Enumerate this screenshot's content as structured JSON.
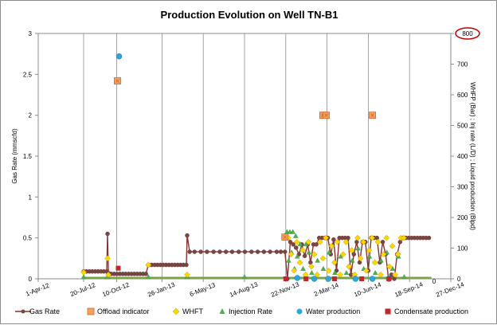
{
  "chart_data": {
    "type": "line",
    "title": "Production Evolution on Well TN-B1",
    "ylabel_left": "Gas Rate (mmscfd)",
    "ylabel_right": "WHFP (Bar) ; Inj rate (L/D) ; Liquid production (Blpd)",
    "ylim_left": [
      0,
      3
    ],
    "ylim_right": [
      0,
      800
    ],
    "y_ticks_left": [
      "0",
      "0.5",
      "1",
      "1.5",
      "2",
      "2.5",
      "3"
    ],
    "y_ticks_right": [
      "0",
      "100",
      "200",
      "300",
      "400",
      "500",
      "600",
      "700",
      "800"
    ],
    "x_range": [
      "2012-04-01",
      "2014-12-27"
    ],
    "x_ticks": [
      {
        "date": "2012-04-01",
        "label": "1-Apr-12"
      },
      {
        "date": "2012-07-20",
        "label": "20-Jul-12"
      },
      {
        "date": "2012-10-08",
        "label": "10-Oct-12"
      },
      {
        "date": "2013-01-26",
        "label": "26-Jan-13"
      },
      {
        "date": "2013-05-06",
        "label": "6-May-13"
      },
      {
        "date": "2013-08-14",
        "label": "14-Aug-13"
      },
      {
        "date": "2013-11-22",
        "label": "22-Nov-13"
      },
      {
        "date": "2014-03-02",
        "label": "2-Mar-14"
      },
      {
        "date": "2014-06-10",
        "label": "10-Jun-14"
      },
      {
        "date": "2014-09-18",
        "label": "18-Sep-14"
      },
      {
        "date": "2014-12-27",
        "label": "27-Dec-14"
      }
    ],
    "right_axis_annotation": {
      "label": "800",
      "color": "#c00000"
    },
    "end_label": "0",
    "series": [
      {
        "name": "Gas Rate",
        "axis": "left",
        "color": "#8b2f2f",
        "marker_color": "#6e4b46",
        "points": [
          [
            "2012-07-20",
            0.09
          ],
          [
            "2012-07-27",
            0.09
          ],
          [
            "2012-08-03",
            0.09
          ],
          [
            "2012-08-10",
            0.09
          ],
          [
            "2012-08-17",
            0.09
          ],
          [
            "2012-08-24",
            0.09
          ],
          [
            "2012-08-31",
            0.09
          ],
          [
            "2012-09-07",
            0.09
          ],
          [
            "2012-09-14",
            0.09
          ],
          [
            "2012-09-16",
            0.55
          ],
          [
            "2012-09-18",
            0.07
          ],
          [
            "2012-09-25",
            0.06
          ],
          [
            "2012-10-02",
            0.06
          ],
          [
            "2012-10-09",
            0.06
          ],
          [
            "2012-10-16",
            0.06
          ],
          [
            "2012-10-23",
            0.06
          ],
          [
            "2012-10-30",
            0.06
          ],
          [
            "2012-11-06",
            0.06
          ],
          [
            "2012-11-13",
            0.06
          ],
          [
            "2012-11-20",
            0.06
          ],
          [
            "2012-11-27",
            0.06
          ],
          [
            "2012-12-04",
            0.06
          ],
          [
            "2012-12-11",
            0.06
          ],
          [
            "2012-12-18",
            0.06
          ],
          [
            "2012-12-24",
            0.17
          ],
          [
            "2013-01-01",
            0.17
          ],
          [
            "2013-01-08",
            0.17
          ],
          [
            "2013-01-15",
            0.17
          ],
          [
            "2013-01-22",
            0.17
          ],
          [
            "2013-01-29",
            0.17
          ],
          [
            "2013-02-05",
            0.17
          ],
          [
            "2013-02-12",
            0.17
          ],
          [
            "2013-02-19",
            0.17
          ],
          [
            "2013-02-26",
            0.17
          ],
          [
            "2013-03-05",
            0.17
          ],
          [
            "2013-03-12",
            0.17
          ],
          [
            "2013-03-19",
            0.17
          ],
          [
            "2013-03-26",
            0.17
          ],
          [
            "2013-03-28",
            0.53
          ],
          [
            "2013-04-03",
            0.33
          ],
          [
            "2013-04-15",
            0.33
          ],
          [
            "2013-04-30",
            0.33
          ],
          [
            "2013-05-15",
            0.33
          ],
          [
            "2013-05-31",
            0.33
          ],
          [
            "2013-06-15",
            0.33
          ],
          [
            "2013-06-30",
            0.33
          ],
          [
            "2013-07-15",
            0.33
          ],
          [
            "2013-07-31",
            0.33
          ],
          [
            "2013-08-15",
            0.33
          ],
          [
            "2013-08-31",
            0.33
          ],
          [
            "2013-09-15",
            0.33
          ],
          [
            "2013-09-30",
            0.33
          ],
          [
            "2013-10-15",
            0.33
          ],
          [
            "2013-10-31",
            0.33
          ],
          [
            "2013-11-10",
            0.33
          ],
          [
            "2013-11-20",
            0.33
          ],
          [
            "2013-11-26",
            0.0
          ],
          [
            "2013-12-03",
            0.45
          ],
          [
            "2013-12-10",
            0.42
          ],
          [
            "2013-12-17",
            0.38
          ],
          [
            "2013-12-24",
            0.3
          ],
          [
            "2013-12-31",
            0.42
          ],
          [
            "2014-01-07",
            0.28
          ],
          [
            "2014-01-14",
            0.42
          ],
          [
            "2014-01-21",
            0.2
          ],
          [
            "2014-01-28",
            0.42
          ],
          [
            "2014-02-04",
            0.42
          ],
          [
            "2014-02-11",
            0.5
          ],
          [
            "2014-02-18",
            0.5
          ],
          [
            "2014-02-25",
            0.5
          ],
          [
            "2014-03-04",
            0.5
          ],
          [
            "2014-03-11",
            0.3
          ],
          [
            "2014-03-18",
            0.48
          ],
          [
            "2014-03-25",
            0.1
          ],
          [
            "2014-04-01",
            0.5
          ],
          [
            "2014-04-08",
            0.5
          ],
          [
            "2014-04-15",
            0.5
          ],
          [
            "2014-04-22",
            0.5
          ],
          [
            "2014-04-29",
            0.05
          ],
          [
            "2014-05-06",
            0.3
          ],
          [
            "2014-05-13",
            0.45
          ],
          [
            "2014-05-20",
            0.2
          ],
          [
            "2014-05-27",
            0.45
          ],
          [
            "2014-06-03",
            0.45
          ],
          [
            "2014-06-10",
            0.1
          ],
          [
            "2014-06-17",
            0.5
          ],
          [
            "2014-06-24",
            0.5
          ],
          [
            "2014-07-01",
            0.5
          ],
          [
            "2014-07-08",
            0.2
          ],
          [
            "2014-07-15",
            0.45
          ],
          [
            "2014-07-22",
            0.3
          ],
          [
            "2014-07-29",
            0.0
          ],
          [
            "2014-08-05",
            0.05
          ],
          [
            "2014-08-12",
            0.0
          ],
          [
            "2014-08-19",
            0.3
          ],
          [
            "2014-08-26",
            0.45
          ],
          [
            "2014-09-02",
            0.5
          ],
          [
            "2014-09-09",
            0.5
          ],
          [
            "2014-09-16",
            0.5
          ],
          [
            "2014-09-23",
            0.5
          ],
          [
            "2014-09-30",
            0.5
          ],
          [
            "2014-10-07",
            0.5
          ],
          [
            "2014-10-14",
            0.5
          ],
          [
            "2014-10-21",
            0.5
          ],
          [
            "2014-10-28",
            0.5
          ],
          [
            "2014-11-04",
            0.5
          ]
        ]
      },
      {
        "name": "Offload indicator",
        "axis": "left",
        "color": "#f4a261",
        "edge_color": "#d6622a",
        "points": [
          [
            "2012-10-10",
            2.42
          ],
          [
            "2013-11-20",
            0.51
          ],
          [
            "2014-02-20",
            2.0
          ],
          [
            "2014-02-28",
            2.0
          ],
          [
            "2014-06-20",
            2.0
          ]
        ]
      },
      {
        "name": "WHFT",
        "axis": "left",
        "color": "#ffd700",
        "edge_color": "#b8a000",
        "points": [
          [
            "2012-07-20",
            0.08
          ],
          [
            "2012-09-16",
            0.25
          ],
          [
            "2012-09-18",
            0.05
          ],
          [
            "2012-12-24",
            0.17
          ],
          [
            "2013-03-28",
            0.05
          ],
          [
            "2013-11-28",
            0.5
          ],
          [
            "2013-12-05",
            0.3
          ],
          [
            "2013-12-12",
            0.1
          ],
          [
            "2013-12-19",
            0.45
          ],
          [
            "2013-12-26",
            0.2
          ],
          [
            "2014-01-02",
            0.35
          ],
          [
            "2014-01-09",
            0.05
          ],
          [
            "2014-01-16",
            0.45
          ],
          [
            "2014-01-23",
            0.15
          ],
          [
            "2014-01-30",
            0.3
          ],
          [
            "2014-02-06",
            0.05
          ],
          [
            "2014-02-13",
            0.45
          ],
          [
            "2014-02-20",
            0.25
          ],
          [
            "2014-02-27",
            0.5
          ],
          [
            "2014-03-06",
            0.1
          ],
          [
            "2014-03-13",
            0.4
          ],
          [
            "2014-03-20",
            0.2
          ],
          [
            "2014-03-27",
            0.45
          ],
          [
            "2014-04-03",
            0.05
          ],
          [
            "2014-04-10",
            0.3
          ],
          [
            "2014-04-17",
            0.45
          ],
          [
            "2014-04-24",
            0.15
          ],
          [
            "2014-05-01",
            0.35
          ],
          [
            "2014-05-08",
            0.05
          ],
          [
            "2014-05-15",
            0.5
          ],
          [
            "2014-05-22",
            0.25
          ],
          [
            "2014-05-29",
            0.45
          ],
          [
            "2014-06-05",
            0.1
          ],
          [
            "2014-06-12",
            0.35
          ],
          [
            "2014-06-19",
            0.5
          ],
          [
            "2014-06-26",
            0.2
          ],
          [
            "2014-07-03",
            0.45
          ],
          [
            "2014-07-10",
            0.05
          ],
          [
            "2014-07-17",
            0.3
          ],
          [
            "2014-07-24",
            0.5
          ],
          [
            "2014-07-31",
            0.15
          ],
          [
            "2014-08-07",
            0.4
          ],
          [
            "2014-08-14",
            0.05
          ],
          [
            "2014-08-21",
            0.3
          ],
          [
            "2014-08-28",
            0.5
          ],
          [
            "2014-09-04",
            0.5
          ]
        ]
      },
      {
        "name": "Injection Rate",
        "axis": "left",
        "color": "#4caf50",
        "points": [
          [
            "2012-07-20",
            0.0
          ],
          [
            "2012-09-16",
            0.0
          ],
          [
            "2012-12-24",
            0.0
          ],
          [
            "2013-03-28",
            0.0
          ],
          [
            "2013-08-14",
            0.0
          ],
          [
            "2013-11-25",
            0.55
          ],
          [
            "2013-11-29",
            0.2
          ],
          [
            "2013-12-02",
            0.55
          ],
          [
            "2013-12-06",
            0.3
          ],
          [
            "2013-12-09",
            0.55
          ],
          [
            "2013-12-13",
            0.1
          ],
          [
            "2013-12-16",
            0.5
          ],
          [
            "2013-12-20",
            0.25
          ],
          [
            "2013-12-27",
            0.4
          ],
          [
            "2014-01-03",
            0.1
          ],
          [
            "2014-01-10",
            0.4
          ],
          [
            "2014-01-17",
            0.3
          ],
          [
            "2014-01-24",
            0.05
          ],
          [
            "2014-02-07",
            0.2
          ],
          [
            "2014-02-21",
            0.1
          ],
          [
            "2014-03-07",
            0.3
          ],
          [
            "2014-03-21",
            0.05
          ],
          [
            "2014-04-04",
            0.25
          ],
          [
            "2014-04-18",
            0.05
          ],
          [
            "2014-05-02",
            0.2
          ],
          [
            "2014-05-16",
            0.35
          ],
          [
            "2014-05-30",
            0.1
          ],
          [
            "2014-06-13",
            0.25
          ],
          [
            "2014-06-27",
            0.05
          ],
          [
            "2014-07-11",
            0.2
          ],
          [
            "2014-07-25",
            0.3
          ],
          [
            "2014-08-08",
            0.1
          ],
          [
            "2014-08-22",
            0.25
          ],
          [
            "2014-09-05",
            0.0
          ]
        ],
        "baseline": {
          "from": "2012-07-20",
          "to": "2014-11-10",
          "value": 0.0
        }
      },
      {
        "name": "Water production",
        "axis": "left",
        "color": "#29a8d9",
        "points": [
          [
            "2012-10-14",
            2.72
          ],
          [
            "2013-12-20",
            0.01
          ],
          [
            "2014-01-30",
            0.0
          ],
          [
            "2014-03-05",
            0.0
          ],
          [
            "2014-05-10",
            0.0
          ],
          [
            "2014-06-20",
            0.0
          ],
          [
            "2014-07-30",
            0.0
          ]
        ]
      },
      {
        "name": "Condensate production",
        "axis": "left",
        "color": "#c0272d",
        "points": [
          [
            "2012-10-12",
            0.13
          ],
          [
            "2013-11-22",
            0.0
          ],
          [
            "2014-01-10",
            0.0
          ],
          [
            "2014-03-20",
            0.0
          ],
          [
            "2014-05-25",
            0.0
          ],
          [
            "2014-07-30",
            0.0
          ]
        ]
      }
    ],
    "legend_position": "bottom",
    "grid": "vertical"
  }
}
